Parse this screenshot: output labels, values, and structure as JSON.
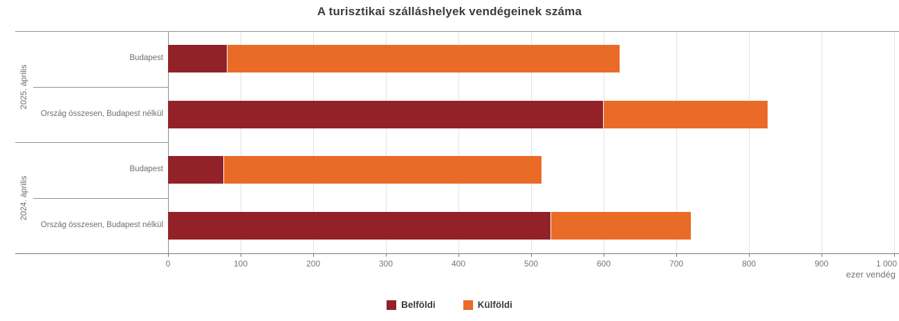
{
  "chart_data": {
    "type": "bar",
    "orientation": "horizontal",
    "stacked": true,
    "title": "A turisztikai szálláshelyek vendégeinek száma",
    "xlabel": "ezer vendég",
    "xlim": [
      0,
      1000
    ],
    "x_tick_step": 100,
    "x_tick_labels": [
      "0",
      "100",
      "200",
      "300",
      "400",
      "500",
      "600",
      "700",
      "800",
      "900",
      "1 000"
    ],
    "grid": true,
    "legend_position": "bottom",
    "series_names": [
      "Belföldi",
      "Külföldi"
    ],
    "series_colors": [
      "#922128",
      "#e96b27"
    ],
    "groups": [
      {
        "label": "2025. április",
        "rows": [
          {
            "label": "Budapest",
            "values": [
              82,
              540
            ]
          },
          {
            "label": "Ország összesen, Budapest nélkül",
            "values": [
              600,
              226
            ]
          }
        ]
      },
      {
        "label": "2024. április",
        "rows": [
          {
            "label": "Budapest",
            "values": [
              77,
              437
            ]
          },
          {
            "label": "Ország összesen, Budapest nélkül",
            "values": [
              528,
              192
            ]
          }
        ]
      }
    ],
    "categories": [
      "2025. április – Budapest",
      "2025. április – Ország összesen, Budapest nélkül",
      "2024. április – Budapest",
      "2024. április – Ország összesen, Budapest nélkül"
    ],
    "series": [
      {
        "name": "Belföldi",
        "values": [
          82,
          600,
          77,
          528
        ]
      },
      {
        "name": "Külföldi",
        "values": [
          540,
          226,
          437,
          192
        ]
      }
    ]
  }
}
